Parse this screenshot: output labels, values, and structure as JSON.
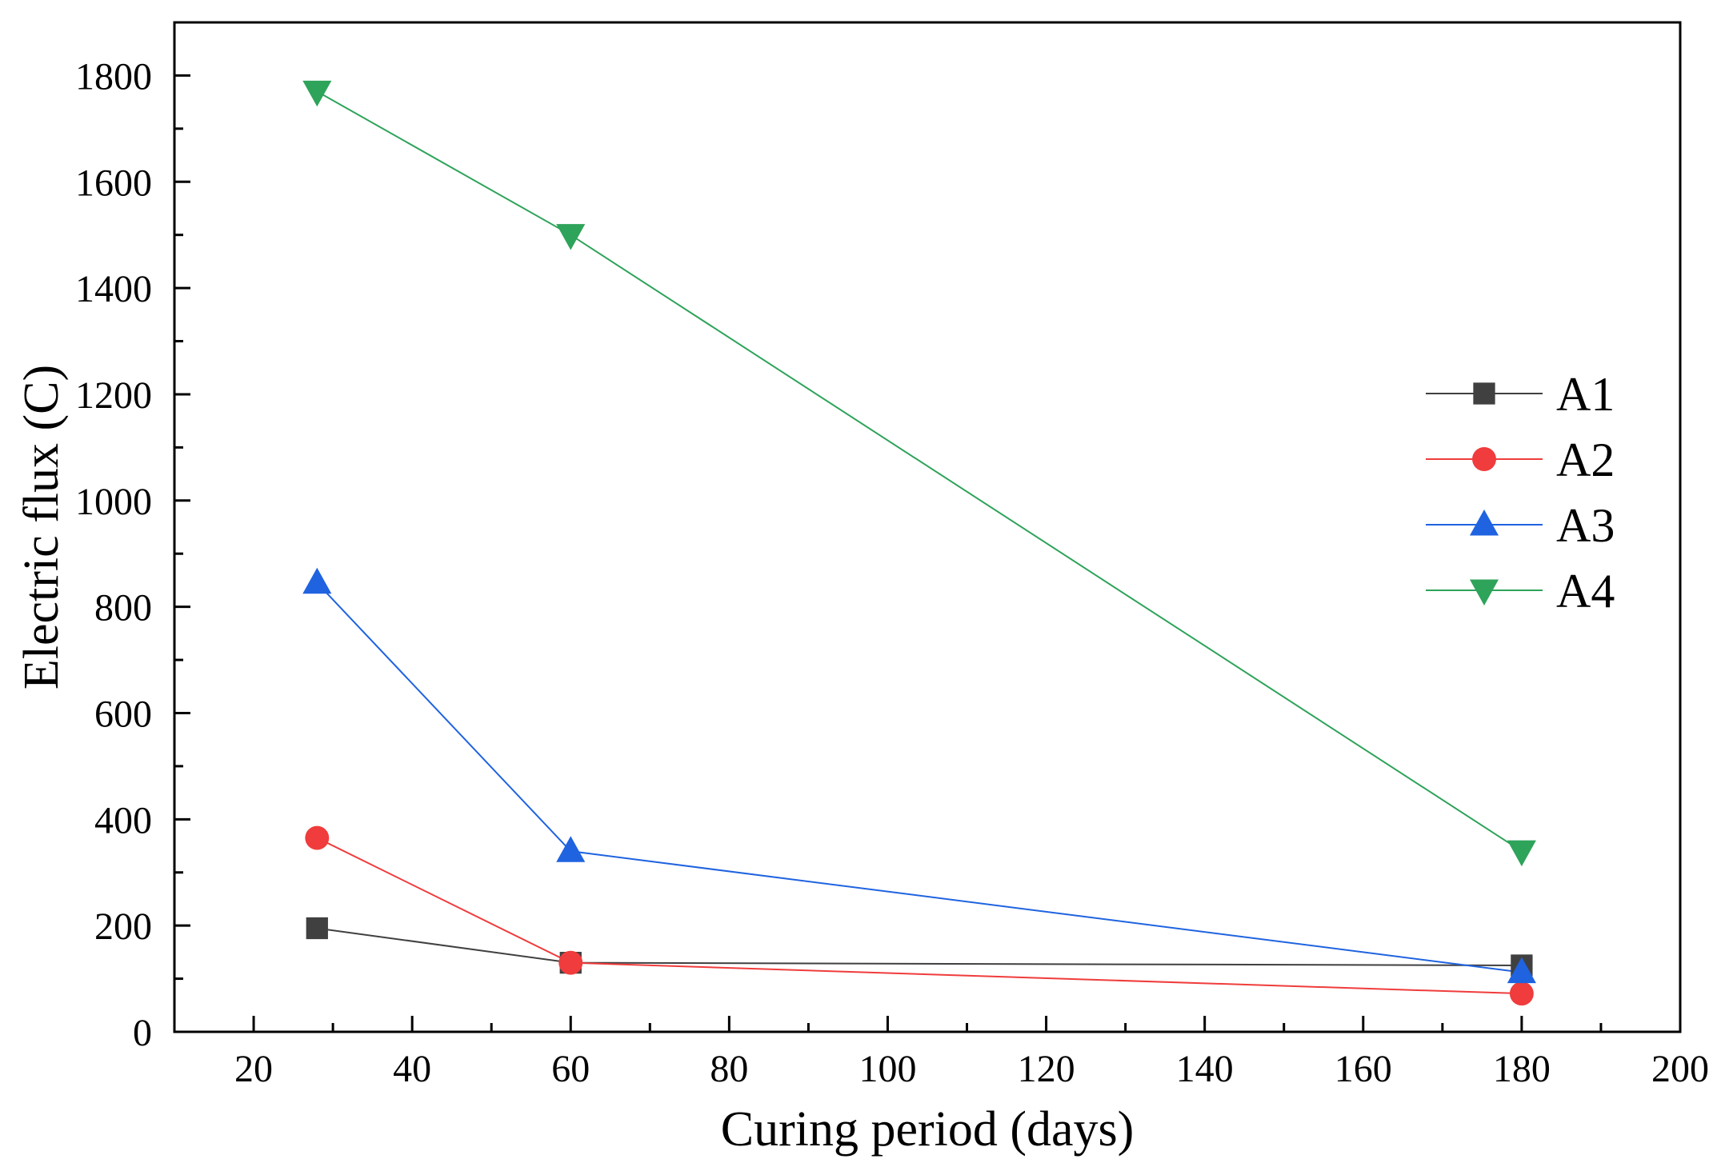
{
  "chart_data": {
    "type": "line",
    "title": "",
    "xlabel": "Curing period (days)",
    "ylabel": "Electric flux (C)",
    "xlim": [
      10,
      200
    ],
    "ylim": [
      0,
      1900
    ],
    "xticks": [
      20,
      40,
      60,
      80,
      100,
      120,
      140,
      160,
      180,
      200
    ],
    "xtick_labels": [
      "20",
      "40",
      "60",
      "80",
      "100",
      "120",
      "140",
      "160",
      "180",
      "200"
    ],
    "yticks": [
      0,
      200,
      400,
      600,
      800,
      1000,
      1200,
      1400,
      1600,
      1800
    ],
    "ytick_labels": [
      "0",
      "200",
      "400",
      "600",
      "800",
      "1000",
      "1200",
      "1400",
      "1600",
      "1800"
    ],
    "grid": false,
    "legend_position": "right",
    "x": [
      28,
      60,
      180
    ],
    "series": [
      {
        "name": "A1",
        "values": [
          195,
          130,
          125
        ],
        "color": "#404040",
        "marker": "square"
      },
      {
        "name": "A2",
        "values": [
          365,
          130,
          72
        ],
        "color": "#f03c3c",
        "marker": "circle"
      },
      {
        "name": "A3",
        "values": [
          845,
          340,
          112
        ],
        "color": "#1f63e0",
        "marker": "triangle-up"
      },
      {
        "name": "A4",
        "values": [
          1770,
          1500,
          340
        ],
        "color": "#2ea35a",
        "marker": "triangle-down"
      }
    ]
  }
}
